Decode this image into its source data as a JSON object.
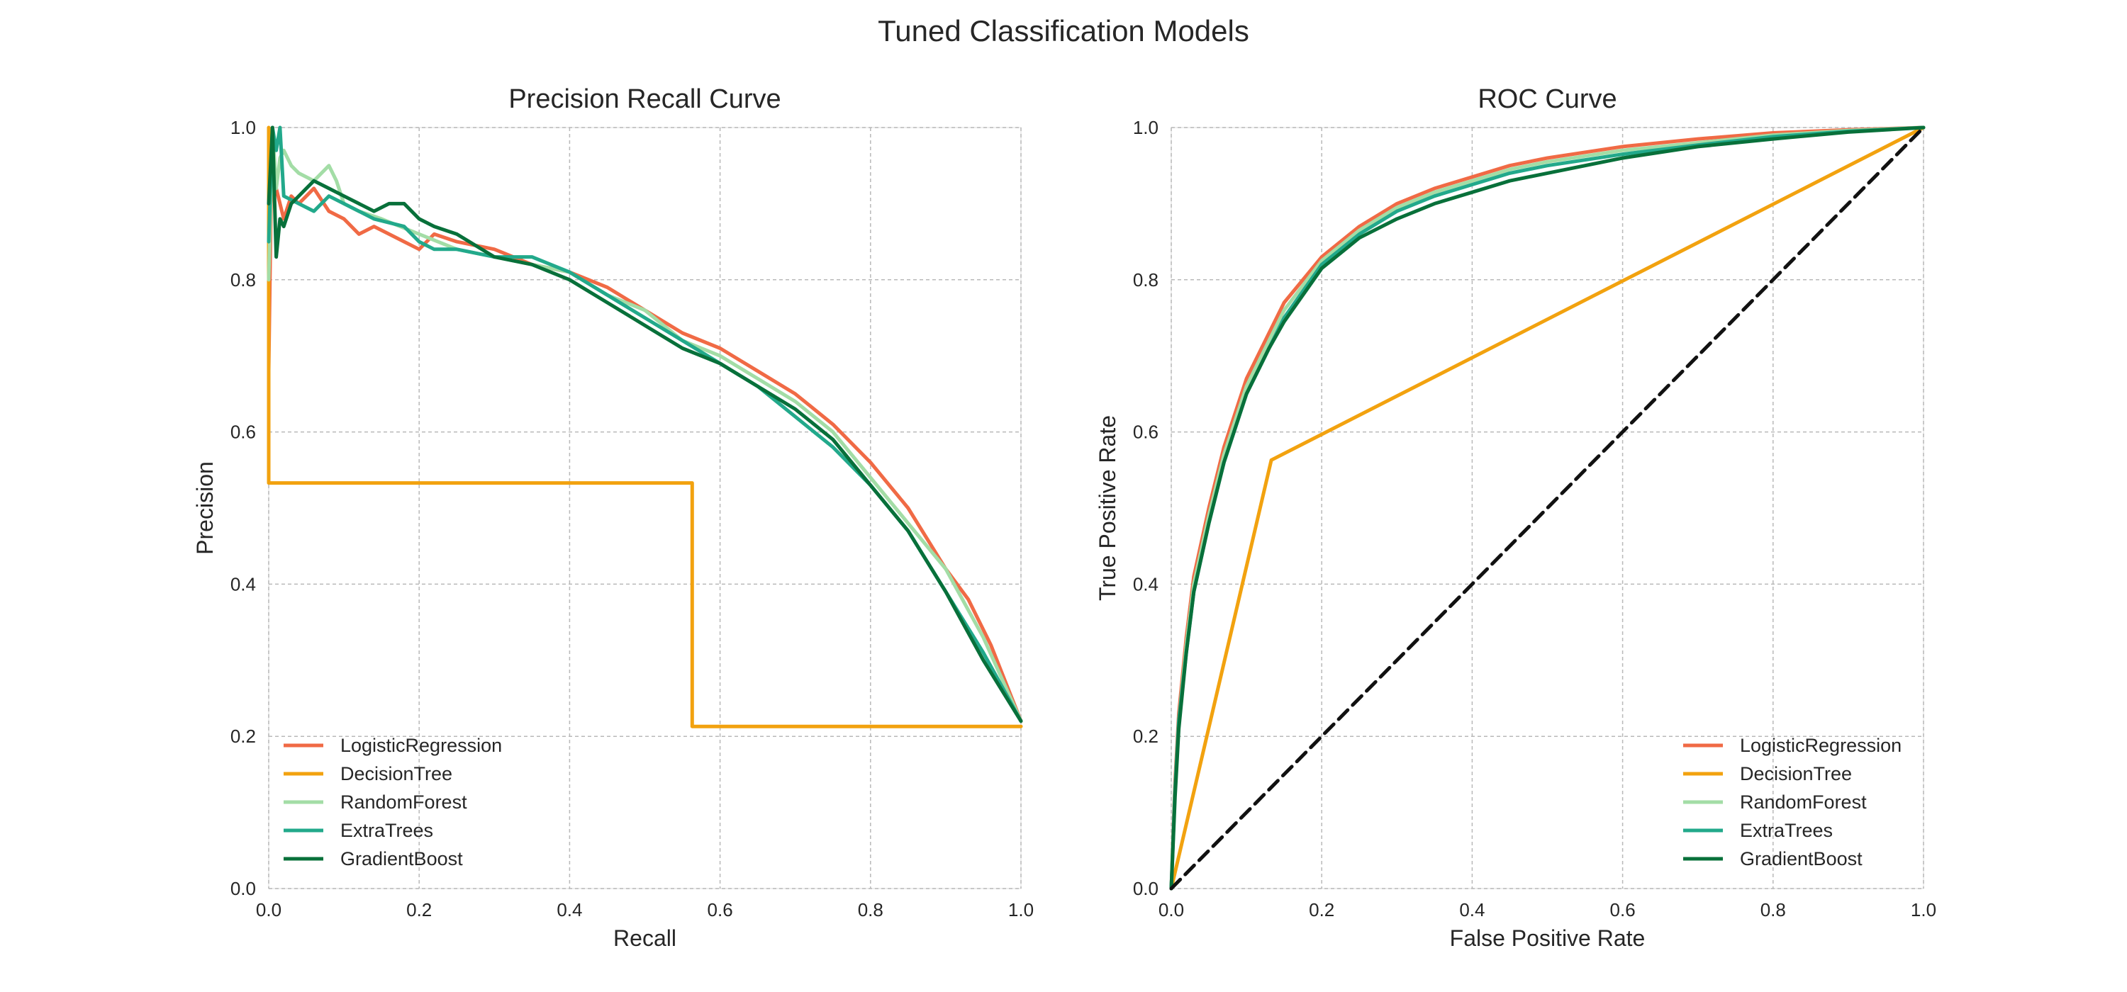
{
  "figure": {
    "title": "Tuned Classification Models"
  },
  "colors": {
    "LogisticRegression": "#f06a45",
    "DecisionTree": "#f2a20f",
    "RandomForest": "#a3dda6",
    "ExtraTrees": "#22a98b",
    "GradientBoost": "#08703a",
    "chance": "#111111"
  },
  "chart_data": [
    {
      "type": "line",
      "title": "Precision Recall Curve",
      "xlabel": "Recall",
      "ylabel": "Precision",
      "xlim": [
        0,
        1
      ],
      "ylim": [
        0,
        1
      ],
      "xticks": [
        "0.0",
        "0.2",
        "0.4",
        "0.6",
        "0.8",
        "1.0"
      ],
      "yticks": [
        "0.0",
        "0.2",
        "0.4",
        "0.6",
        "0.8",
        "1.0"
      ],
      "grid": true,
      "legend": "bottom-left",
      "series": [
        {
          "name": "LogisticRegression",
          "x": [
            0,
            0.003,
            0.006,
            0.01,
            0.02,
            0.03,
            0.04,
            0.05,
            0.06,
            0.08,
            0.1,
            0.12,
            0.14,
            0.16,
            0.18,
            0.2,
            0.22,
            0.25,
            0.3,
            0.35,
            0.4,
            0.45,
            0.5,
            0.55,
            0.6,
            0.65,
            0.7,
            0.75,
            0.8,
            0.85,
            0.9,
            0.93,
            0.96,
            0.98,
            1.0
          ],
          "y": [
            0.68,
            0.9,
            0.95,
            0.92,
            0.88,
            0.91,
            0.9,
            0.91,
            0.92,
            0.89,
            0.88,
            0.86,
            0.87,
            0.86,
            0.85,
            0.84,
            0.86,
            0.85,
            0.84,
            0.82,
            0.81,
            0.79,
            0.76,
            0.73,
            0.71,
            0.68,
            0.65,
            0.61,
            0.56,
            0.5,
            0.42,
            0.38,
            0.32,
            0.27,
            0.22
          ]
        },
        {
          "name": "DecisionTree",
          "x": [
            0,
            0,
            0.563,
            0.563,
            1.0
          ],
          "y": [
            1.0,
            0.533,
            0.533,
            0.213,
            0.213
          ]
        },
        {
          "name": "RandomForest",
          "x": [
            0,
            0.005,
            0.01,
            0.015,
            0.02,
            0.03,
            0.04,
            0.06,
            0.08,
            0.09,
            0.1,
            0.12,
            0.15,
            0.2,
            0.25,
            0.3,
            0.35,
            0.4,
            0.45,
            0.5,
            0.55,
            0.6,
            0.65,
            0.7,
            0.75,
            0.8,
            0.85,
            0.9,
            0.95,
            1.0
          ],
          "y": [
            0.8,
            1.0,
            0.92,
            0.96,
            0.97,
            0.95,
            0.94,
            0.93,
            0.95,
            0.93,
            0.9,
            0.89,
            0.88,
            0.86,
            0.84,
            0.83,
            0.82,
            0.81,
            0.78,
            0.76,
            0.72,
            0.7,
            0.67,
            0.64,
            0.6,
            0.54,
            0.48,
            0.42,
            0.33,
            0.22
          ]
        },
        {
          "name": "ExtraTrees",
          "x": [
            0,
            0.005,
            0.01,
            0.015,
            0.02,
            0.04,
            0.06,
            0.08,
            0.1,
            0.12,
            0.14,
            0.18,
            0.2,
            0.22,
            0.25,
            0.3,
            0.35,
            0.4,
            0.45,
            0.5,
            0.55,
            0.6,
            0.65,
            0.7,
            0.75,
            0.8,
            0.85,
            0.9,
            0.95,
            1.0
          ],
          "y": [
            0.85,
            1.0,
            0.97,
            1.0,
            0.91,
            0.9,
            0.89,
            0.91,
            0.9,
            0.89,
            0.88,
            0.87,
            0.85,
            0.84,
            0.84,
            0.83,
            0.83,
            0.81,
            0.78,
            0.75,
            0.72,
            0.69,
            0.66,
            0.62,
            0.58,
            0.53,
            0.47,
            0.39,
            0.31,
            0.22
          ]
        },
        {
          "name": "GradientBoost",
          "x": [
            0,
            0.005,
            0.01,
            0.015,
            0.02,
            0.03,
            0.04,
            0.05,
            0.06,
            0.08,
            0.1,
            0.12,
            0.14,
            0.16,
            0.18,
            0.2,
            0.22,
            0.25,
            0.3,
            0.35,
            0.4,
            0.45,
            0.5,
            0.55,
            0.6,
            0.65,
            0.7,
            0.75,
            0.8,
            0.85,
            0.9,
            0.95,
            1.0
          ],
          "y": [
            0.9,
            1.0,
            0.83,
            0.88,
            0.87,
            0.9,
            0.91,
            0.92,
            0.93,
            0.92,
            0.91,
            0.9,
            0.89,
            0.9,
            0.9,
            0.88,
            0.87,
            0.86,
            0.83,
            0.82,
            0.8,
            0.77,
            0.74,
            0.71,
            0.69,
            0.66,
            0.63,
            0.59,
            0.53,
            0.47,
            0.39,
            0.3,
            0.22
          ]
        }
      ]
    },
    {
      "type": "line",
      "title": "ROC Curve",
      "xlabel": "False Positive Rate",
      "ylabel": "True Positive Rate",
      "xlim": [
        0,
        1
      ],
      "ylim": [
        0,
        1
      ],
      "xticks": [
        "0.0",
        "0.2",
        "0.4",
        "0.6",
        "0.8",
        "1.0"
      ],
      "yticks": [
        "0.0",
        "0.2",
        "0.4",
        "0.6",
        "0.8",
        "1.0"
      ],
      "grid": true,
      "legend": "bottom-right",
      "series": [
        {
          "name": "LogisticRegression",
          "x": [
            0,
            0.005,
            0.01,
            0.02,
            0.03,
            0.05,
            0.07,
            0.1,
            0.13,
            0.15,
            0.2,
            0.25,
            0.3,
            0.35,
            0.4,
            0.45,
            0.5,
            0.6,
            0.7,
            0.8,
            0.9,
            1.0
          ],
          "y": [
            0,
            0.14,
            0.23,
            0.33,
            0.41,
            0.5,
            0.58,
            0.67,
            0.73,
            0.77,
            0.83,
            0.87,
            0.9,
            0.92,
            0.935,
            0.95,
            0.96,
            0.975,
            0.985,
            0.993,
            0.997,
            1.0
          ]
        },
        {
          "name": "DecisionTree",
          "x": [
            0,
            0.133,
            1.0
          ],
          "y": [
            0,
            0.563,
            1.0
          ]
        },
        {
          "name": "RandomForest",
          "x": [
            0,
            0.005,
            0.01,
            0.02,
            0.03,
            0.05,
            0.07,
            0.1,
            0.13,
            0.15,
            0.2,
            0.25,
            0.3,
            0.35,
            0.4,
            0.45,
            0.5,
            0.6,
            0.7,
            0.8,
            0.9,
            1.0
          ],
          "y": [
            0,
            0.13,
            0.22,
            0.32,
            0.4,
            0.49,
            0.57,
            0.66,
            0.72,
            0.76,
            0.825,
            0.865,
            0.895,
            0.915,
            0.93,
            0.945,
            0.955,
            0.97,
            0.98,
            0.99,
            0.996,
            1.0
          ]
        },
        {
          "name": "ExtraTrees",
          "x": [
            0,
            0.005,
            0.01,
            0.02,
            0.03,
            0.05,
            0.07,
            0.1,
            0.13,
            0.15,
            0.2,
            0.25,
            0.3,
            0.35,
            0.4,
            0.45,
            0.5,
            0.6,
            0.7,
            0.8,
            0.9,
            1.0
          ],
          "y": [
            0,
            0.13,
            0.22,
            0.31,
            0.39,
            0.48,
            0.56,
            0.65,
            0.71,
            0.75,
            0.82,
            0.86,
            0.89,
            0.91,
            0.925,
            0.94,
            0.95,
            0.965,
            0.977,
            0.988,
            0.995,
            1.0
          ]
        },
        {
          "name": "GradientBoost",
          "x": [
            0,
            0.005,
            0.01,
            0.02,
            0.03,
            0.05,
            0.07,
            0.1,
            0.13,
            0.15,
            0.2,
            0.25,
            0.3,
            0.35,
            0.4,
            0.45,
            0.5,
            0.6,
            0.7,
            0.8,
            0.9,
            1.0
          ],
          "y": [
            0,
            0.12,
            0.21,
            0.31,
            0.39,
            0.48,
            0.56,
            0.65,
            0.71,
            0.745,
            0.815,
            0.855,
            0.88,
            0.9,
            0.915,
            0.93,
            0.94,
            0.96,
            0.975,
            0.985,
            0.994,
            1.0
          ]
        },
        {
          "name": "",
          "style": "dashed",
          "x": [
            0,
            1
          ],
          "y": [
            0,
            1
          ]
        }
      ]
    }
  ]
}
